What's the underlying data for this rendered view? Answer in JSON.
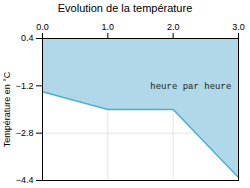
{
  "chart_data": {
    "type": "line",
    "title": "Evolution de la température",
    "ylabel": "Température en °C",
    "x": [
      0,
      1,
      2,
      3
    ],
    "values": [
      -1.4,
      -2.0,
      -2.0,
      -4.3
    ],
    "color": "#4ab0cc",
    "xlim": [
      0,
      3
    ],
    "ylim": [
      -4.4,
      0.4
    ],
    "xticks": [
      0,
      1,
      2,
      3
    ],
    "yticks": [
      0.4,
      -1.2,
      -2.8,
      -4.4
    ],
    "grid": true,
    "annotations": [
      {
        "text": "heure par heure",
        "x": 1.65,
        "y": -1.1
      }
    ]
  }
}
